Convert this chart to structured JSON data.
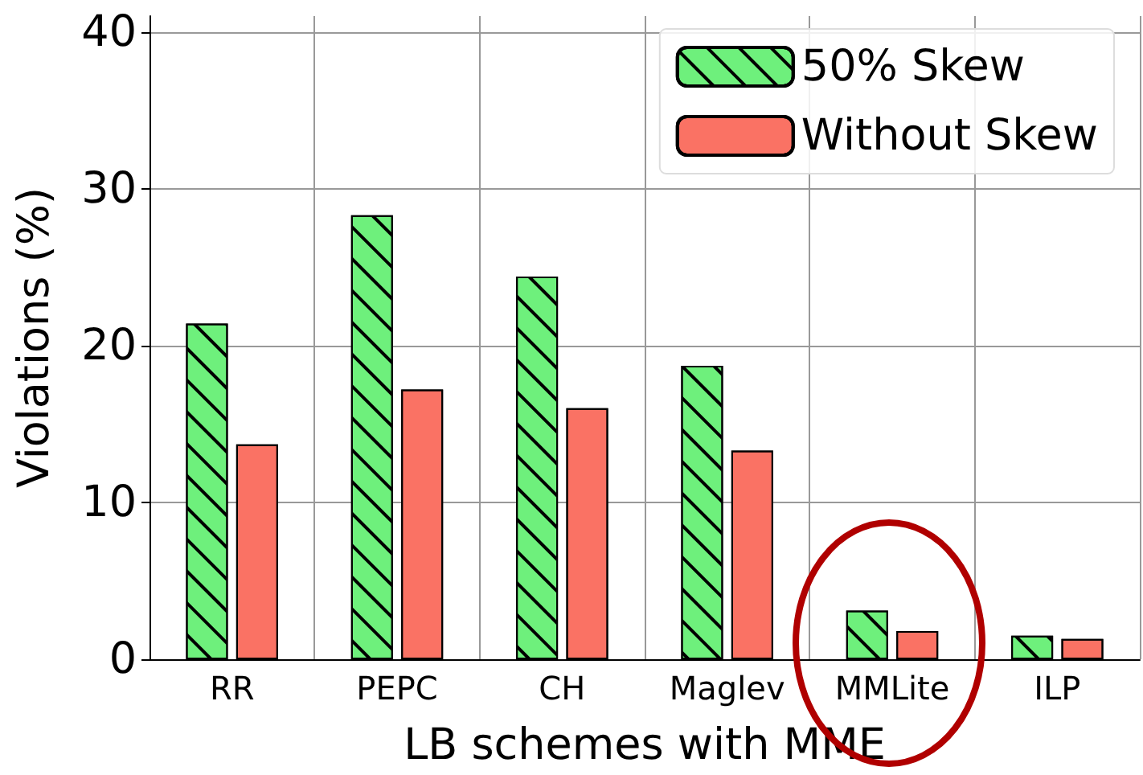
{
  "chart_data": {
    "type": "bar",
    "xlabel": "LB schemes with MME",
    "ylabel": "Violations (%)",
    "categories": [
      "RR",
      "PEPC",
      "CH",
      "Maglev",
      "MMLite",
      "ILP"
    ],
    "series": [
      {
        "name": "50% Skew",
        "color": "#6ef07c",
        "values": [
          21.4,
          28.3,
          24.4,
          18.7,
          3.1,
          1.5
        ]
      },
      {
        "name": "Without Skew",
        "color": "#fa7264",
        "values": [
          13.7,
          17.2,
          16.0,
          13.3,
          1.8,
          1.3
        ]
      }
    ],
    "ylim": [
      0,
      41
    ],
    "yticks": [
      0,
      10,
      20,
      30,
      40
    ],
    "grid": true,
    "legend": "top right"
  }
}
